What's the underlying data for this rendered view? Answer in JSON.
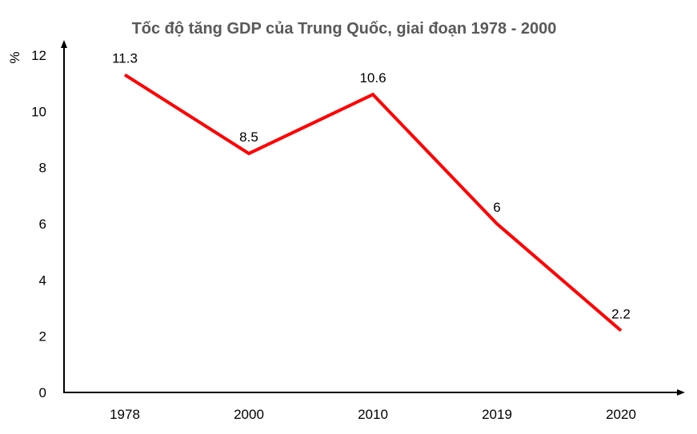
{
  "chart_data": {
    "type": "line",
    "title": "Tốc độ tăng GDP của Trung Quốc, giai đoạn 1978 - 2000",
    "ylabel": "%",
    "xlabel": "",
    "categories": [
      "1978",
      "2000",
      "2010",
      "2019",
      "2020"
    ],
    "values": [
      11.3,
      8.5,
      10.6,
      6,
      2.2
    ],
    "data_labels": [
      "11.3",
      "8.5",
      "10.6",
      "6",
      "2.2"
    ],
    "yticks": [
      "0",
      "2",
      "4",
      "6",
      "8",
      "10",
      "12"
    ],
    "ylim": [
      0,
      12
    ],
    "grid": false,
    "line_color": "#ff0000"
  }
}
